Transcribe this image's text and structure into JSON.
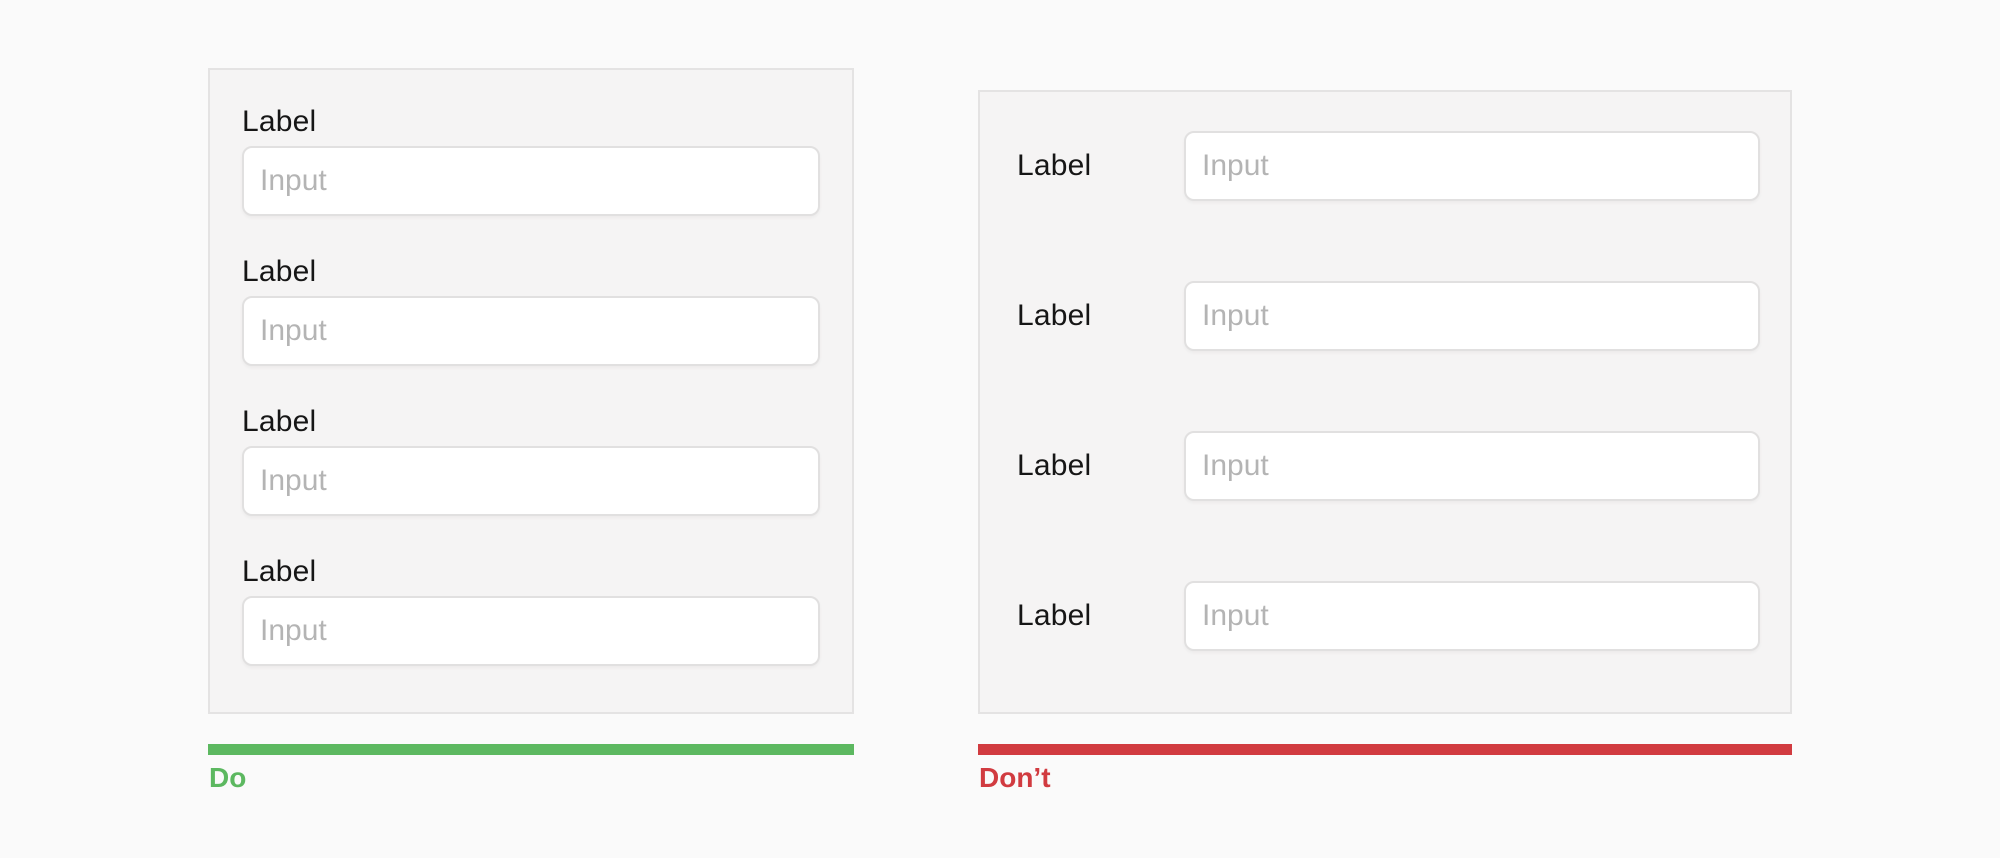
{
  "examples": {
    "do": {
      "verdict": "Do",
      "accent_color": "#5CB860",
      "fields": [
        {
          "label": "Label",
          "placeholder": "Input"
        },
        {
          "label": "Label",
          "placeholder": "Input"
        },
        {
          "label": "Label",
          "placeholder": "Input"
        },
        {
          "label": "Label",
          "placeholder": "Input"
        }
      ]
    },
    "dont": {
      "verdict": "Don’t",
      "accent_color": "#D13B40",
      "fields": [
        {
          "label": "Label",
          "placeholder": "Input"
        },
        {
          "label": "Label",
          "placeholder": "Input"
        },
        {
          "label": "Label",
          "placeholder": "Input"
        },
        {
          "label": "Label",
          "placeholder": "Input"
        }
      ]
    }
  }
}
